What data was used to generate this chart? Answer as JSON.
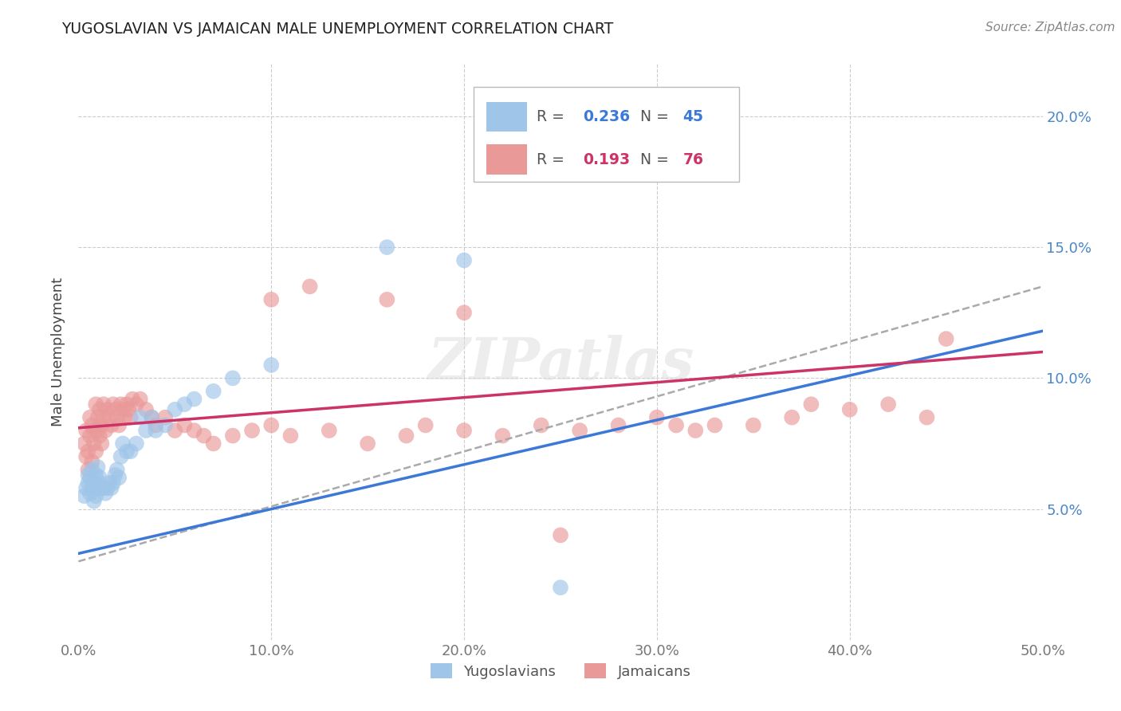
{
  "title": "YUGOSLAVIAN VS JAMAICAN MALE UNEMPLOYMENT CORRELATION CHART",
  "source": "Source: ZipAtlas.com",
  "ylabel": "Male Unemployment",
  "yug_color": "#9fc5e8",
  "jam_color": "#ea9999",
  "yug_color_line": "#3c78d8",
  "jam_color_line": "#cc3366",
  "trend_dash_color": "#aaaaaa",
  "background_color": "#ffffff",
  "grid_color": "#cccccc",
  "xlim": [
    0.0,
    0.5
  ],
  "ylim": [
    0.0,
    0.22
  ],
  "x_ticks": [
    0.0,
    0.1,
    0.2,
    0.3,
    0.4,
    0.5
  ],
  "y_ticks": [
    0.05,
    0.1,
    0.15,
    0.2
  ],
  "x_tick_labels": [
    "0.0%",
    "10.0%",
    "20.0%",
    "30.0%",
    "40.0%",
    "50.0%"
  ],
  "y_tick_labels_right": [
    "5.0%",
    "10.0%",
    "15.0%",
    "20.0%"
  ],
  "blue_R": "0.236",
  "blue_N": "45",
  "pink_R": "0.193",
  "pink_N": "76",
  "blue_label": "Yugoslavians",
  "pink_label": "Jamaicans",
  "blue_trend": [
    0.033,
    0.118
  ],
  "pink_trend": [
    0.081,
    0.11
  ],
  "dash_trend": [
    0.03,
    0.135
  ],
  "yug_x": [
    0.003,
    0.004,
    0.005,
    0.005,
    0.006,
    0.006,
    0.007,
    0.007,
    0.008,
    0.008,
    0.009,
    0.009,
    0.01,
    0.01,
    0.011,
    0.011,
    0.012,
    0.013,
    0.014,
    0.015,
    0.016,
    0.017,
    0.018,
    0.019,
    0.02,
    0.021,
    0.022,
    0.023,
    0.025,
    0.027,
    0.03,
    0.032,
    0.035,
    0.038,
    0.04,
    0.045,
    0.05,
    0.055,
    0.06,
    0.07,
    0.08,
    0.1,
    0.16,
    0.2,
    0.25
  ],
  "yug_y": [
    0.055,
    0.058,
    0.06,
    0.063,
    0.056,
    0.062,
    0.058,
    0.065,
    0.053,
    0.06,
    0.055,
    0.063,
    0.058,
    0.066,
    0.062,
    0.06,
    0.058,
    0.058,
    0.056,
    0.058,
    0.06,
    0.058,
    0.06,
    0.063,
    0.065,
    0.062,
    0.07,
    0.075,
    0.072,
    0.072,
    0.075,
    0.085,
    0.08,
    0.085,
    0.08,
    0.082,
    0.088,
    0.09,
    0.092,
    0.095,
    0.1,
    0.105,
    0.15,
    0.145,
    0.02
  ],
  "jam_x": [
    0.003,
    0.004,
    0.004,
    0.005,
    0.005,
    0.006,
    0.006,
    0.007,
    0.007,
    0.008,
    0.008,
    0.009,
    0.009,
    0.01,
    0.01,
    0.011,
    0.011,
    0.012,
    0.012,
    0.013,
    0.013,
    0.014,
    0.015,
    0.016,
    0.017,
    0.018,
    0.019,
    0.02,
    0.021,
    0.022,
    0.023,
    0.024,
    0.025,
    0.026,
    0.027,
    0.028,
    0.03,
    0.032,
    0.035,
    0.038,
    0.04,
    0.045,
    0.05,
    0.055,
    0.06,
    0.065,
    0.07,
    0.08,
    0.09,
    0.1,
    0.11,
    0.13,
    0.15,
    0.17,
    0.18,
    0.2,
    0.22,
    0.24,
    0.26,
    0.28,
    0.3,
    0.31,
    0.32,
    0.33,
    0.35,
    0.37,
    0.38,
    0.4,
    0.42,
    0.44,
    0.1,
    0.12,
    0.16,
    0.2,
    0.45,
    0.25
  ],
  "jam_y": [
    0.075,
    0.07,
    0.08,
    0.072,
    0.065,
    0.078,
    0.085,
    0.068,
    0.082,
    0.075,
    0.08,
    0.09,
    0.072,
    0.08,
    0.085,
    0.078,
    0.088,
    0.082,
    0.075,
    0.085,
    0.09,
    0.08,
    0.088,
    0.085,
    0.082,
    0.09,
    0.088,
    0.085,
    0.082,
    0.09,
    0.088,
    0.085,
    0.09,
    0.088,
    0.085,
    0.092,
    0.09,
    0.092,
    0.088,
    0.085,
    0.082,
    0.085,
    0.08,
    0.082,
    0.08,
    0.078,
    0.075,
    0.078,
    0.08,
    0.082,
    0.078,
    0.08,
    0.075,
    0.078,
    0.082,
    0.08,
    0.078,
    0.082,
    0.08,
    0.082,
    0.085,
    0.082,
    0.08,
    0.082,
    0.082,
    0.085,
    0.09,
    0.088,
    0.09,
    0.085,
    0.13,
    0.135,
    0.13,
    0.125,
    0.115,
    0.04
  ]
}
